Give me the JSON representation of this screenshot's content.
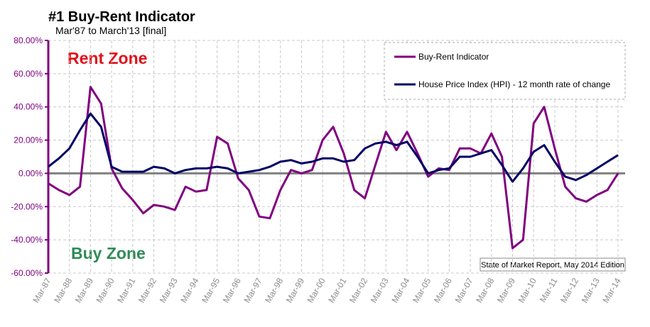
{
  "chart_data": {
    "type": "line",
    "title": "#1 Buy-Rent Indicator",
    "subtitle": "Mar'87 to March'13 [final]",
    "annotations": {
      "rent_zone": "Rent Zone",
      "buy_zone": "Buy Zone",
      "source": "State of Market Report, May 2014 Edition"
    },
    "categories": [
      "Mar-87",
      null,
      "Mar-88",
      null,
      "Mar-89",
      null,
      "Mar-90",
      null,
      "Mar-91",
      null,
      "Mar-92",
      null,
      "Mar-93",
      null,
      "Mar-94",
      null,
      "Mar-95",
      null,
      "Mar-96",
      null,
      "Mar-97",
      null,
      "Mar-98",
      null,
      "Mar-99",
      null,
      "Mar-00",
      null,
      "Mar-01",
      null,
      "Mar-02",
      null,
      "Mar-03",
      null,
      "Mar-04",
      null,
      "Mar-05",
      null,
      "Mar-06",
      null,
      "Mar-07",
      null,
      "Mar-08",
      null,
      "Mar-09",
      null,
      "Mar-10",
      null,
      "Mar-11",
      null,
      "Mar-12",
      null,
      "Mar-13",
      null,
      "Mar-14"
    ],
    "series": [
      {
        "name": "Buy-Rent Indicator",
        "color": "#800080",
        "values": [
          -6,
          -10,
          -13,
          -8,
          52,
          42,
          3,
          -9,
          -16,
          -24,
          -19,
          -20,
          -22,
          -8,
          -11,
          -10,
          22,
          18,
          -3,
          -10,
          -26,
          -27,
          -10,
          2,
          0,
          2,
          20,
          28,
          12,
          -10,
          -15,
          5,
          25,
          14,
          25,
          12,
          -2,
          3,
          2,
          15,
          15,
          12,
          24,
          10,
          -45,
          -40,
          30,
          40,
          15,
          -8,
          -15,
          -17,
          -13,
          -10,
          0
        ]
      },
      {
        "name": "House Price Index (HPI) - 12 month rate of change",
        "color": "#000066",
        "values": [
          4,
          9,
          15,
          26,
          36,
          28,
          4,
          1,
          1,
          1,
          4,
          3,
          0,
          2,
          3,
          3,
          4,
          3,
          0,
          1,
          2,
          4,
          7,
          8,
          6,
          7,
          9,
          9,
          7,
          8,
          15,
          18,
          19,
          17,
          19,
          10,
          0,
          2,
          3,
          10,
          10,
          12,
          14,
          5,
          -5,
          3,
          13,
          17,
          7,
          -2,
          -4,
          -1,
          3,
          7,
          11
        ]
      }
    ],
    "ylim": [
      -60,
      80
    ],
    "yticks": [
      {
        "value": -60,
        "label": "-60.00%"
      },
      {
        "value": -40,
        "label": "-40.00%"
      },
      {
        "value": -20,
        "label": "-20.00%"
      },
      {
        "value": 0,
        "label": "0.00%"
      },
      {
        "value": 20,
        "label": "20.00%"
      },
      {
        "value": 40,
        "label": "40.00%"
      },
      {
        "value": 60,
        "label": "60.00%"
      },
      {
        "value": 80,
        "label": "80.00%"
      }
    ],
    "grid": true,
    "legend": "upper right"
  }
}
